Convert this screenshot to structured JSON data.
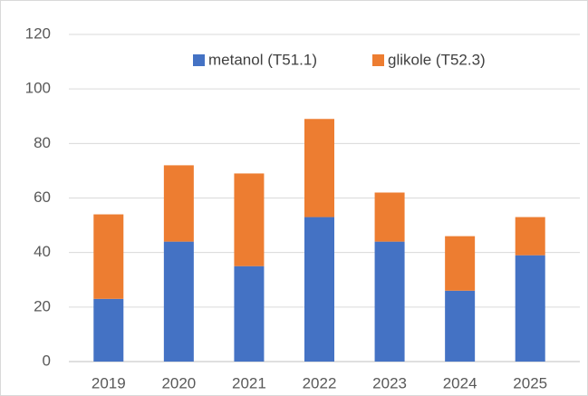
{
  "chart_data": {
    "type": "stacked-bar",
    "categories": [
      "2019",
      "2020",
      "2021",
      "2022",
      "2023",
      "2024",
      "2025"
    ],
    "series": [
      {
        "name": "metanol (T51.1)",
        "color": "#4472c4",
        "values": [
          23,
          44,
          35,
          53,
          44,
          26,
          39
        ]
      },
      {
        "name": "glikole (T52.3)",
        "color": "#ed7d31",
        "values": [
          31,
          28,
          34,
          36,
          18,
          20,
          14
        ]
      }
    ],
    "ylim": [
      0,
      120
    ],
    "yticks": [
      0,
      20,
      40,
      60,
      80,
      100,
      120
    ],
    "grid": true,
    "legend": "top"
  }
}
